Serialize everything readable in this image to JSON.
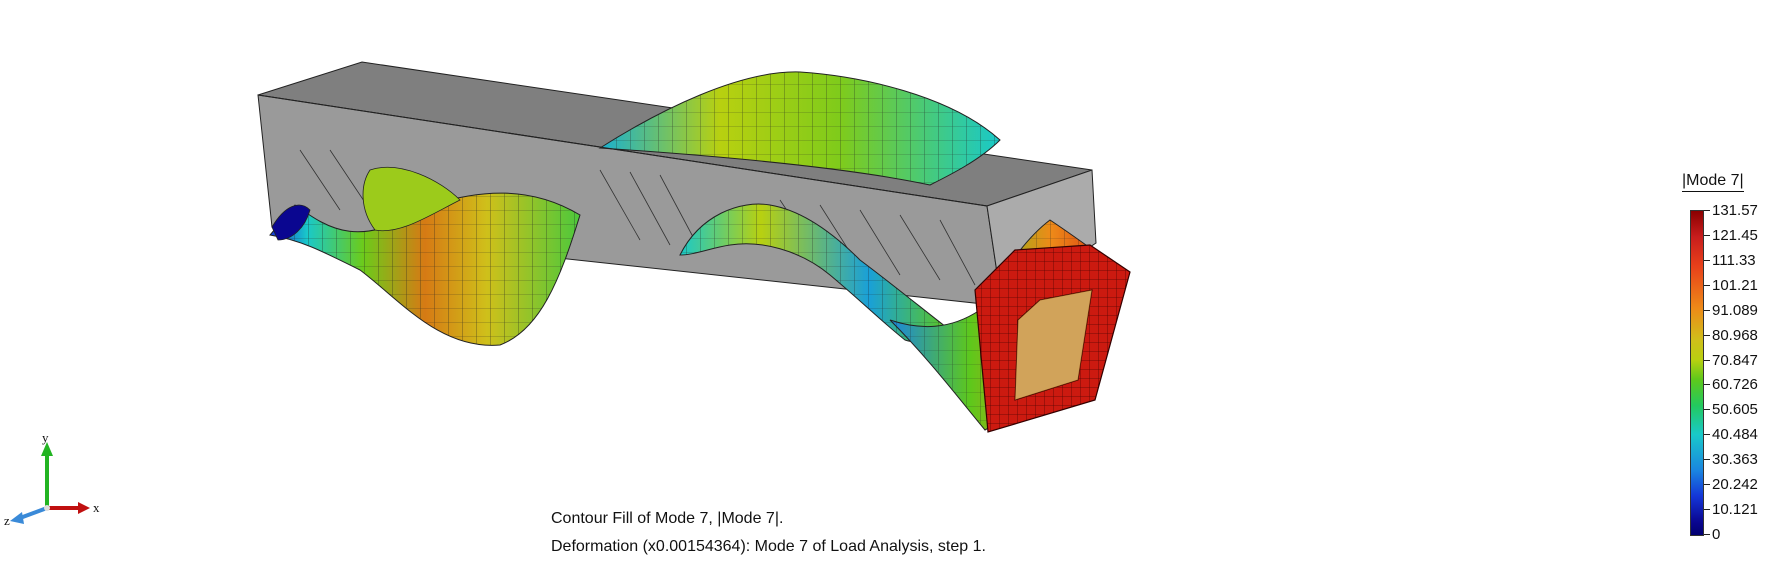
{
  "legend": {
    "title": "|Mode 7|",
    "values": [
      "131.57",
      "121.45",
      "111.33",
      "101.21",
      "91.089",
      "80.968",
      "70.847",
      "60.726",
      "50.605",
      "40.484",
      "30.363",
      "20.242",
      "10.121",
      "0"
    ]
  },
  "caption": {
    "line1": "Contour Fill of Mode 7, |Mode 7|.",
    "line2": "Deformation (x0.00154364): Mode 7 of Load Analysis, step 1."
  },
  "axes": {
    "x": "x",
    "y": "y",
    "z": "z"
  },
  "colors": {
    "max": "#8b0000",
    "high": "#e8401a",
    "mid": "#b8d010",
    "low": "#19c9c9",
    "min": "#020070",
    "undeformed": "#9a9a9a"
  }
}
